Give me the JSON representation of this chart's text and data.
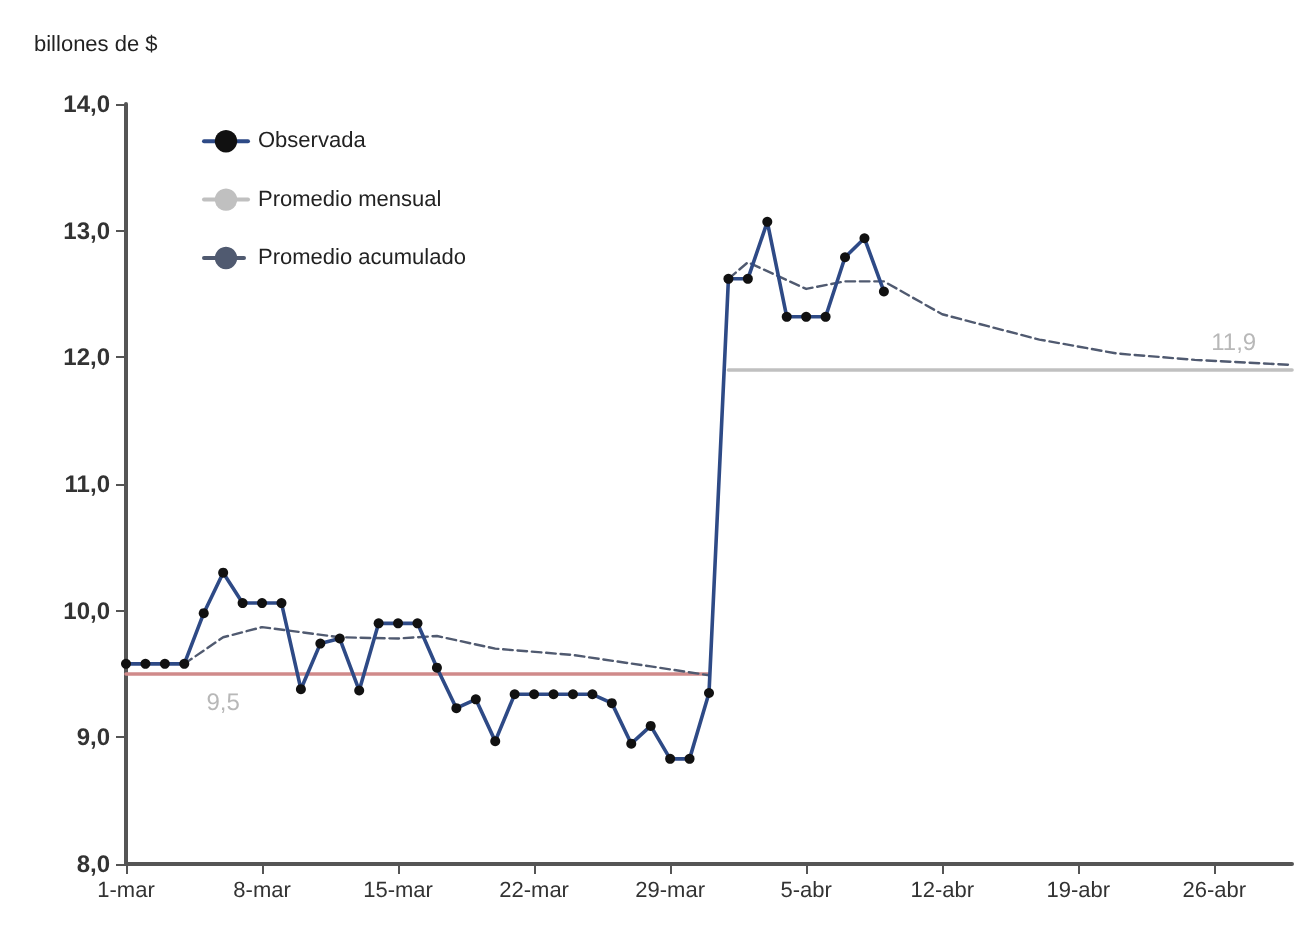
{
  "chart_data": {
    "type": "line",
    "ylabel": "billones de $",
    "xlim": [
      "--03-01",
      "--04-30"
    ],
    "xticks": [
      {
        "value": "--03-01",
        "label": "1-mar"
      },
      {
        "value": "--03-08",
        "label": "8-mar"
      },
      {
        "value": "--03-15",
        "label": "15-mar"
      },
      {
        "value": "--03-22",
        "label": "22-mar"
      },
      {
        "value": "--03-29",
        "label": "29-mar"
      },
      {
        "value": "--04-05",
        "label": "5-abr"
      },
      {
        "value": "--04-12",
        "label": "12-abr"
      },
      {
        "value": "--04-19",
        "label": "19-abr"
      },
      {
        "value": "--04-26",
        "label": "26-abr"
      }
    ],
    "ylim": [
      8,
      14
    ],
    "yticks": [
      {
        "value": 8,
        "label": "8,0"
      },
      {
        "value": 9,
        "label": "9,0"
      },
      {
        "value": 10,
        "label": "10,0"
      },
      {
        "value": 11,
        "label": "11,0"
      },
      {
        "value": 12,
        "label": "12,0"
      },
      {
        "value": 13,
        "label": "13,0"
      },
      {
        "value": 14,
        "label": "14,0"
      }
    ],
    "grid": false,
    "legend": "top left",
    "series": [
      {
        "name": "Observada",
        "color": "#2e4a86",
        "marker": "circle",
        "x": [
          "--03-01",
          "--03-02",
          "--03-03",
          "--03-04",
          "--03-05",
          "--03-06",
          "--03-07",
          "--03-08",
          "--03-09",
          "--03-10",
          "--03-11",
          "--03-12",
          "--03-13",
          "--03-14",
          "--03-15",
          "--03-16",
          "--03-17",
          "--03-18",
          "--03-19",
          "--03-20",
          "--03-21",
          "--03-22",
          "--03-23",
          "--03-24",
          "--03-25",
          "--03-26",
          "--03-27",
          "--03-28",
          "--03-29",
          "--03-30",
          "--03-31",
          "--04-01",
          "--04-02",
          "--04-03",
          "--04-04",
          "--04-05",
          "--04-06",
          "--04-07",
          "--04-08",
          "--04-09"
        ],
        "values": [
          9.58,
          9.58,
          9.58,
          9.58,
          9.98,
          10.3,
          10.06,
          10.06,
          10.06,
          9.38,
          9.74,
          9.78,
          9.37,
          9.9,
          9.9,
          9.9,
          9.55,
          9.23,
          9.3,
          8.97,
          9.34,
          9.34,
          9.34,
          9.34,
          9.34,
          9.27,
          8.95,
          9.09,
          8.83,
          8.83,
          9.35,
          12.62,
          12.62,
          13.07,
          12.32,
          12.32,
          12.32,
          12.79,
          12.94,
          12.52
        ]
      },
      {
        "name": "Promedio mensual",
        "color": "#c0c0c0",
        "marker": "none",
        "x": [
          "--04-01",
          "--04-27",
          "--04-30"
        ],
        "values": [
          11.9,
          11.9,
          11.9
        ],
        "value_labels": [
          null,
          "11,9",
          null
        ]
      },
      {
        "color": "#d08a8a",
        "marker": "none",
        "x": [
          "--03-01",
          "--03-06",
          "--03-31"
        ],
        "values": [
          9.5,
          9.5,
          9.5
        ],
        "value_labels": [
          null,
          "9,5",
          null
        ]
      },
      {
        "name": "Promedio acumulado",
        "color": "#505a70",
        "marker": "none",
        "line_style": "dashed",
        "x": [
          "--03-01",
          "--03-04",
          "--03-06",
          "--03-08",
          "--03-10",
          "--03-12",
          "--03-15",
          "--03-17",
          "--03-20",
          "--03-24",
          "--03-28",
          "--03-31"
        ],
        "values": [
          9.58,
          9.58,
          9.79,
          9.87,
          9.83,
          9.79,
          9.78,
          9.8,
          9.7,
          9.65,
          9.56,
          9.49
        ]
      },
      {
        "color": "#505a70",
        "marker": "none",
        "line_style": "dashed",
        "x": [
          "--04-01",
          "--04-02",
          "--04-05",
          "--04-07",
          "--04-09",
          "--04-12",
          "--04-17",
          "--04-21",
          "--04-25",
          "--04-30"
        ],
        "values": [
          12.62,
          12.75,
          12.54,
          12.6,
          12.6,
          12.34,
          12.14,
          12.03,
          11.98,
          11.94
        ]
      }
    ]
  }
}
